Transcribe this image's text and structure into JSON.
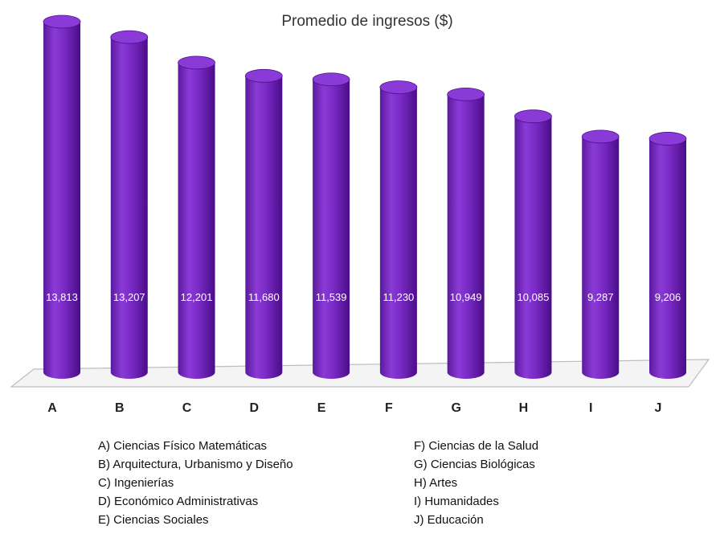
{
  "chart_data": {
    "type": "bar",
    "title": "Promedio de ingresos ($)",
    "xlabel": "",
    "ylabel": "",
    "categories": [
      "A",
      "B",
      "C",
      "D",
      "E",
      "F",
      "G",
      "H",
      "I",
      "J"
    ],
    "values": [
      13813,
      13207,
      12201,
      11680,
      11539,
      11230,
      10949,
      10085,
      9287,
      9206
    ],
    "value_labels": [
      "13,813",
      "13,207",
      "12,201",
      "11,680",
      "11,539",
      "11,230",
      "10,949",
      "10,085",
      "9,287",
      "9,206"
    ],
    "ylim": [
      0,
      14500
    ],
    "grid": false,
    "bar_style": "3d-cylinder",
    "colors": {
      "bar": "#7a2bc6",
      "bar_dark": "#4f0f8e",
      "bar_light": "#9a4fe0",
      "bar_top": "#8a3ad6",
      "floor": "#f4f4f4",
      "floor_edge": "#bdbdbd"
    }
  },
  "legend": {
    "left": [
      "A) Ciencias Físico Matemáticas",
      "B) Arquitectura, Urbanismo y Diseño",
      "C) Ingenierías",
      "D) Económico Administrativas",
      "E) Ciencias Sociales"
    ],
    "right": [
      "F) Ciencias de la Salud",
      "G) Ciencias Biológicas",
      "H) Artes",
      "I) Humanidades",
      "J) Educación"
    ]
  }
}
